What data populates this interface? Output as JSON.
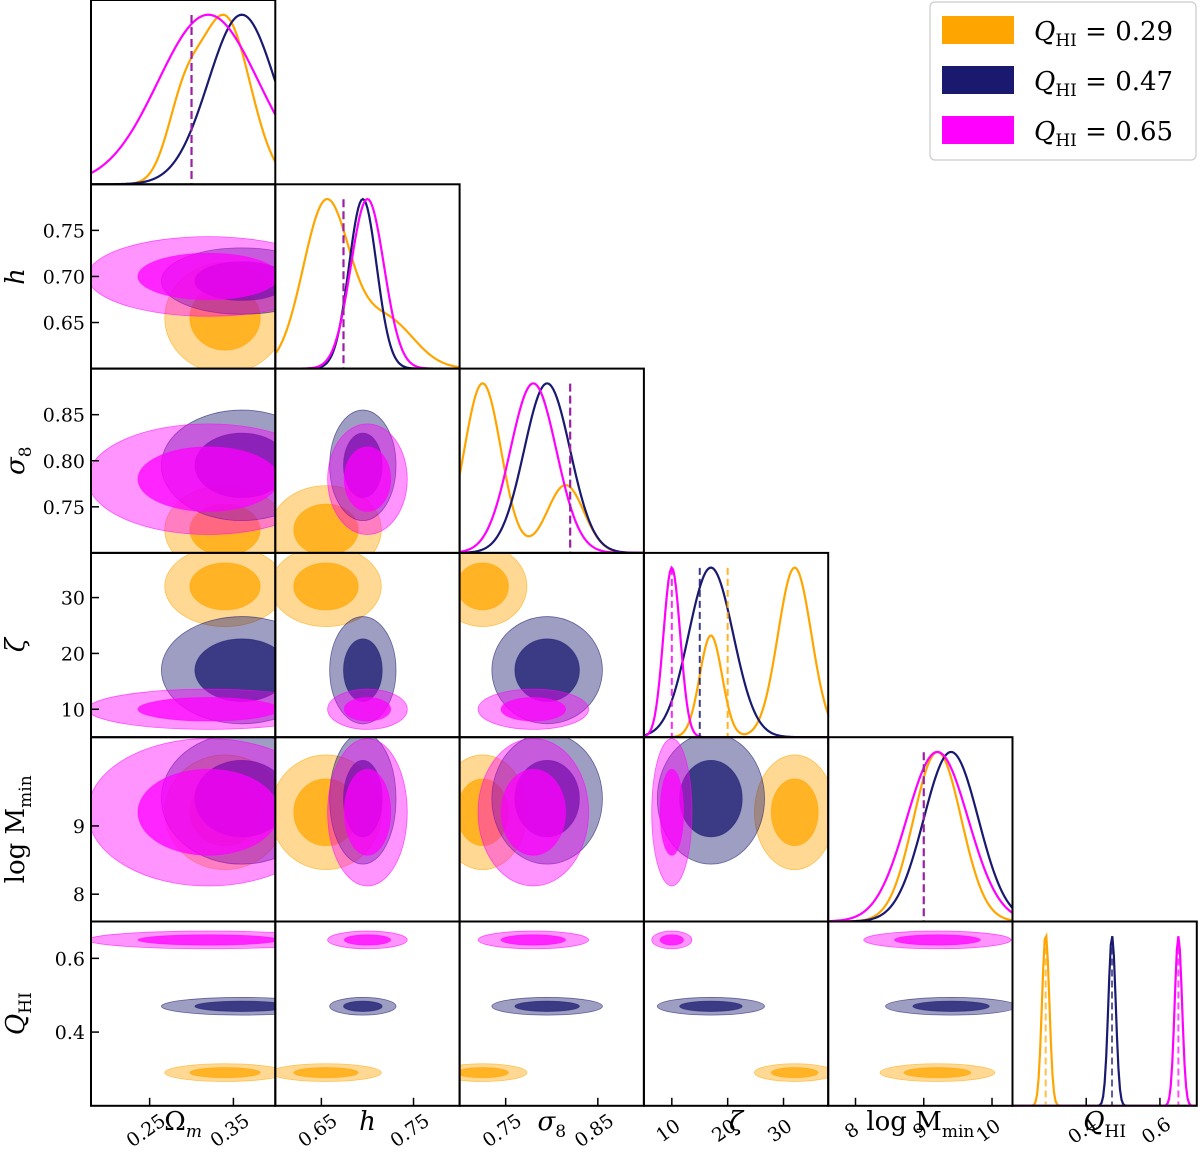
{
  "chart_data": {
    "type": "corner",
    "parameters": [
      {
        "key": "Om",
        "label": "Ω",
        "sub": "m",
        "range": [
          0.18,
          0.4
        ],
        "ticks": [
          0.25,
          0.35
        ],
        "ticklabels": [
          "0.25",
          "0.35"
        ],
        "true": 0.3
      },
      {
        "key": "h",
        "label": "h",
        "sub": "",
        "range": [
          0.6,
          0.8
        ],
        "ticks": [
          0.65,
          0.75
        ],
        "ticklabels": [
          "0.65",
          "0.75"
        ],
        "tickvals_y": [
          0.65,
          0.7,
          0.75
        ],
        "ticklabels_y": [
          "0.65",
          "0.70",
          "0.75"
        ],
        "true": 0.674
      },
      {
        "key": "s8",
        "label": "σ",
        "sub": "8",
        "range": [
          0.7,
          0.9
        ],
        "ticks": [
          0.75,
          0.85
        ],
        "ticklabels": [
          "0.75",
          "0.85"
        ],
        "tickvals_y": [
          0.75,
          0.8,
          0.85
        ],
        "ticklabels_y": [
          "0.75",
          "0.80",
          "0.85"
        ],
        "true": 0.82
      },
      {
        "key": "zeta",
        "label": "ζ",
        "sub": "",
        "range": [
          5,
          38
        ],
        "ticks": [
          10,
          20,
          30
        ],
        "ticklabels": [
          "10",
          "20",
          "30"
        ],
        "tickvals_y": [
          10,
          20,
          30
        ],
        "ticklabels_y": [
          "10",
          "20",
          "30"
        ]
      },
      {
        "key": "logM",
        "label": "log M",
        "sub": "min",
        "range": [
          7.6,
          10.3
        ],
        "ticks": [
          8,
          9,
          10
        ],
        "ticklabels": [
          "8",
          "9",
          "10"
        ],
        "tickvals_y": [
          8,
          9
        ],
        "ticklabels_y": [
          "8",
          "9"
        ],
        "true": 9.0
      },
      {
        "key": "Q",
        "label": "Q",
        "sub": "HI",
        "range": [
          0.2,
          0.7
        ],
        "ticks": [
          0.4,
          0.6
        ],
        "ticklabels": [
          "0.4",
          "0.6"
        ],
        "tickvals_y": [
          0.4,
          0.6
        ],
        "ticklabels_y": [
          "0.4",
          "0.6"
        ]
      }
    ],
    "series": [
      {
        "name": "Q_HI = 0.29",
        "color": "#ffa500",
        "Om": {
          "peaks": [
            [
              0.34,
              0.03,
              1.0
            ],
            [
              0.29,
              0.02,
              0.4
            ]
          ]
        },
        "h": {
          "peaks": [
            [
              0.655,
              0.025,
              1.0
            ],
            [
              0.72,
              0.03,
              0.3
            ]
          ]
        },
        "s8": {
          "peaks": [
            [
              0.725,
              0.02,
              1.0
            ],
            [
              0.815,
              0.02,
              0.4
            ]
          ]
        },
        "zeta": {
          "peaks": [
            [
              32,
              3,
              1.0
            ],
            [
              17,
              2,
              0.6
            ]
          ]
        },
        "logM": {
          "peaks": [
            [
              9.2,
              0.35,
              1.0
            ]
          ]
        },
        "Q": {
          "peaks": [
            [
              0.29,
              0.01,
              1.0
            ]
          ]
        },
        "true_zeta": 20
      },
      {
        "name": "Q_HI = 0.47",
        "color": "#191970",
        "Om": {
          "peaks": [
            [
              0.36,
              0.04,
              1.0
            ]
          ]
        },
        "h": {
          "peaks": [
            [
              0.695,
              0.015,
              1.0
            ]
          ]
        },
        "s8": {
          "peaks": [
            [
              0.795,
              0.025,
              1.0
            ]
          ]
        },
        "zeta": {
          "peaks": [
            [
              17,
              4,
              1.0
            ]
          ]
        },
        "logM": {
          "peaks": [
            [
              9.4,
              0.4,
              1.0
            ]
          ]
        },
        "Q": {
          "peaks": [
            [
              0.47,
              0.01,
              1.0
            ]
          ]
        },
        "true_zeta": 15
      },
      {
        "name": "Q_HI = 0.65",
        "color": "#ff00ff",
        "Om": {
          "peaks": [
            [
              0.32,
              0.06,
              1.0
            ]
          ]
        },
        "h": {
          "peaks": [
            [
              0.7,
              0.018,
              1.0
            ]
          ]
        },
        "s8": {
          "peaks": [
            [
              0.78,
              0.025,
              1.0
            ]
          ]
        },
        "zeta": {
          "peaks": [
            [
              10,
              1.5,
              1.0
            ]
          ]
        },
        "logM": {
          "peaks": [
            [
              9.2,
              0.45,
              1.0
            ]
          ]
        },
        "Q": {
          "peaks": [
            [
              0.65,
              0.01,
              1.0
            ]
          ]
        },
        "true_zeta": 10
      }
    ],
    "legend": [
      {
        "label": "Q",
        "sub": "HI",
        "value": " = 0.29",
        "color": "#ffa500"
      },
      {
        "label": "Q",
        "sub": "HI",
        "value": " = 0.47",
        "color": "#191970"
      },
      {
        "label": "Q",
        "sub": "HI",
        "value": " = 0.65",
        "color": "#ff00ff"
      }
    ],
    "legend_position": "top-right",
    "grid": false
  }
}
